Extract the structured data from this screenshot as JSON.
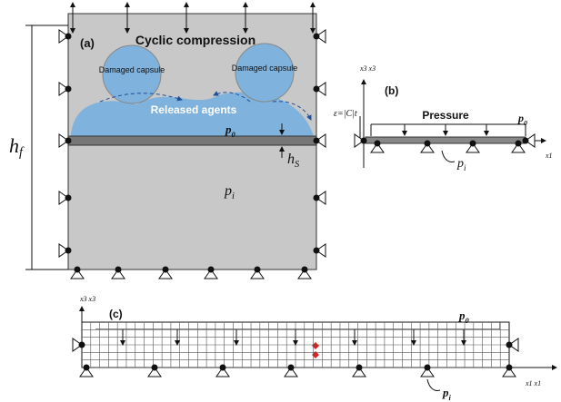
{
  "panel_a": {
    "label": "(a)",
    "title": "Cyclic compression",
    "capsules": [
      "Damaged capsule",
      "Damaged capsule"
    ],
    "agents": "Released agents",
    "p0": {
      "symbol": "p",
      "subscript": "0"
    },
    "hs": {
      "symbol": "h",
      "subscript": "S"
    },
    "hf": {
      "symbol": "h",
      "subscript": "f"
    },
    "pi": {
      "symbol": "p",
      "subscript": "i"
    }
  },
  "panel_b": {
    "label": "(b)",
    "axis_x3": "x3 x3",
    "strain": "ε=|C|t",
    "pressure": "Pressure",
    "p0": {
      "symbol": "p",
      "subscript": "0"
    },
    "pi": {
      "symbol": "p",
      "subscript": "i"
    },
    "axis_x1": "x1"
  },
  "panel_c": {
    "label": "(c)",
    "axis_x3": "x3 x3",
    "p0": {
      "symbol": "p",
      "subscript": "0"
    },
    "pi": {
      "symbol": "p",
      "subscript": "i"
    },
    "axis_x1": "x1 x1"
  }
}
